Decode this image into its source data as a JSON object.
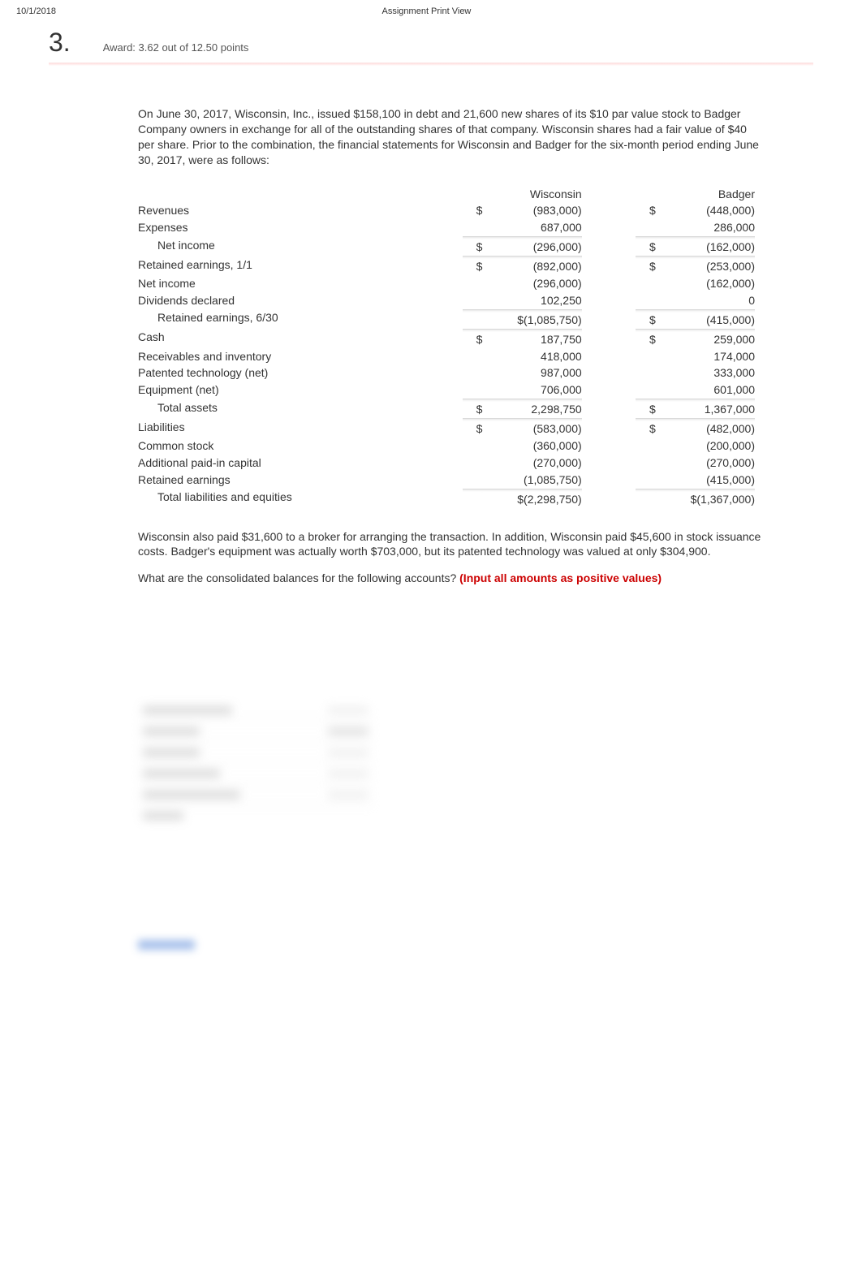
{
  "header": {
    "date": "10/1/2018",
    "title": "Assignment Print View"
  },
  "question": {
    "number": "3.",
    "award": "Award: 3.62 out of 12.50 points"
  },
  "intro": "On June 30, 2017, Wisconsin, Inc., issued $158,100 in debt and 21,600 new shares of its $10 par value stock to Badger Company owners in exchange for all of the outstanding shares of that company. Wisconsin shares had a fair value of $40 per share. Prior to the combination, the financial statements for Wisconsin and Badger for the six-month period ending June 30, 2017, were as follows:",
  "table": {
    "col_headers": [
      "Wisconsin",
      "Badger"
    ],
    "rows": [
      {
        "label": "Revenues",
        "w_sym": "$",
        "w_val": "(983,000)",
        "b_sym": "$",
        "b_val": "(448,000)"
      },
      {
        "label": "Expenses",
        "w_sym": "",
        "w_val": "687,000",
        "b_sym": "",
        "b_val": "286,000"
      },
      {
        "label": "Net income",
        "indent": true,
        "soft_top": true,
        "w_sym": "$",
        "w_val": "(296,000)",
        "b_sym": "$",
        "b_val": "(162,000)"
      },
      {
        "label": "Retained earnings, 1/1",
        "soft_top": true,
        "w_sym": "$",
        "w_val": "(892,000)",
        "b_sym": "$",
        "b_val": "(253,000)"
      },
      {
        "label": "Net income",
        "w_sym": "",
        "w_val": "(296,000)",
        "b_sym": "",
        "b_val": "(162,000)"
      },
      {
        "label": "Dividends declared",
        "w_sym": "",
        "w_val": "102,250",
        "b_sym": "",
        "b_val": "0"
      },
      {
        "label": "Retained earnings, 6/30",
        "indent": true,
        "soft_top": true,
        "w_sym": "",
        "w_val": "$(1,085,750)",
        "b_sym": "$",
        "b_val": "(415,000)"
      },
      {
        "label": "Cash",
        "soft_top": true,
        "w_sym": "$",
        "w_val": "187,750",
        "b_sym": "$",
        "b_val": "259,000"
      },
      {
        "label": "Receivables and inventory",
        "w_sym": "",
        "w_val": "418,000",
        "b_sym": "",
        "b_val": "174,000"
      },
      {
        "label": "Patented technology (net)",
        "w_sym": "",
        "w_val": "987,000",
        "b_sym": "",
        "b_val": "333,000"
      },
      {
        "label": "Equipment (net)",
        "w_sym": "",
        "w_val": "706,000",
        "b_sym": "",
        "b_val": "601,000"
      },
      {
        "label": "Total assets",
        "indent": true,
        "soft_top": true,
        "w_sym": "$",
        "w_val": "2,298,750",
        "b_sym": "$",
        "b_val": "1,367,000"
      },
      {
        "label": "Liabilities",
        "soft_top": true,
        "w_sym": "$",
        "w_val": "(583,000)",
        "b_sym": "$",
        "b_val": "(482,000)"
      },
      {
        "label": "Common stock",
        "w_sym": "",
        "w_val": "(360,000)",
        "b_sym": "",
        "b_val": "(200,000)"
      },
      {
        "label": "Additional paid-in capital",
        "w_sym": "",
        "w_val": "(270,000)",
        "b_sym": "",
        "b_val": "(270,000)"
      },
      {
        "label": "Retained earnings",
        "w_sym": "",
        "w_val": "(1,085,750)",
        "b_sym": "",
        "b_val": "(415,000)"
      },
      {
        "label": "Total liabilities and equities",
        "indent": true,
        "soft_top": true,
        "w_sym": "",
        "w_val": "$(2,298,750)",
        "b_sym": "",
        "b_val": "$(1,367,000)"
      }
    ]
  },
  "para2": "Wisconsin also paid $31,600 to a broker for arranging the transaction. In addition, Wisconsin paid $45,600 in stock issuance costs. Badger's equipment was actually worth $703,000, but its patented technology was valued at only $304,900.",
  "para3a": "What are the consolidated balances for the following accounts? ",
  "para3b": "(Input all amounts as positive values)",
  "colors": {
    "text": "#333333",
    "red": "#cc0000",
    "bg": "#ffffff"
  }
}
